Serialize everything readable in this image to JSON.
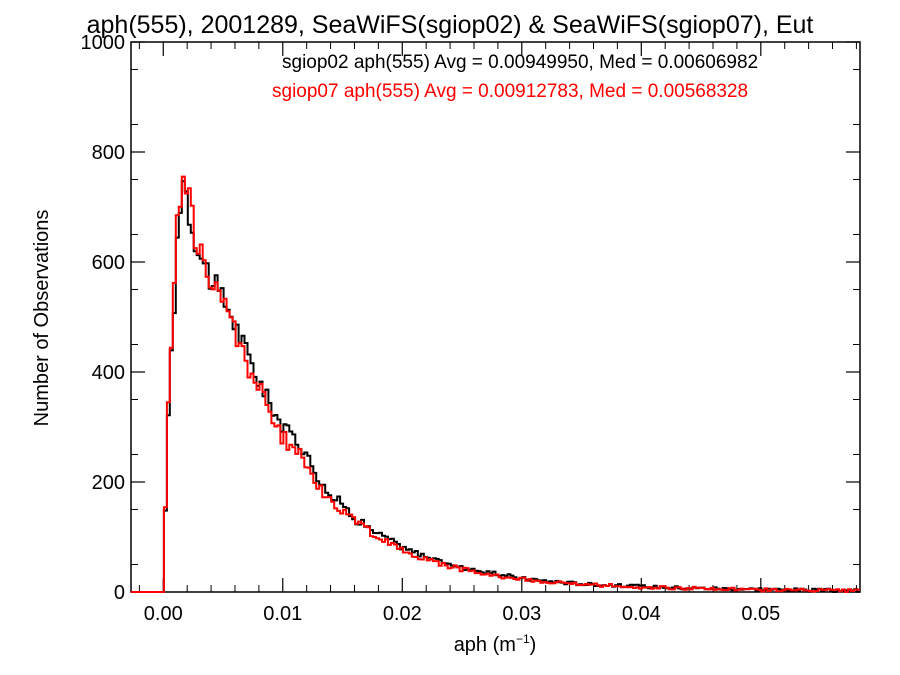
{
  "chart_data": {
    "type": "histogram",
    "title": "aph(555), 2001289, SeaWiFS(sgiop02) & SeaWiFS(sgiop07), Eut",
    "xlabel_base": "aph (m",
    "xlabel_sup": "−1",
    "xlabel_end": ")",
    "ylabel": "Number of Observations",
    "xlim": [
      -0.0027,
      0.0583
    ],
    "ylim": [
      0,
      1000
    ],
    "x_ticks": [
      "0.00",
      "0.01",
      "0.02",
      "0.03",
      "0.04",
      "0.05"
    ],
    "x_tick_values": [
      0.0,
      0.01,
      0.02,
      0.03,
      0.04,
      0.05
    ],
    "y_ticks": [
      "0",
      "200",
      "400",
      "600",
      "800",
      "1000"
    ],
    "y_tick_values": [
      0,
      200,
      400,
      600,
      800,
      1000
    ],
    "grid": false,
    "bin_width": 0.00025,
    "series": [
      {
        "name": "sgiop02",
        "color": "#000000",
        "stats_label": "sgiop02 aph(555) Avg = 0.00949950, Med = 0.00606982",
        "points": [
          [
            -0.0027,
            0
          ],
          [
            0.0,
            0
          ],
          [
            0.0002,
            160
          ],
          [
            0.0005,
            395
          ],
          [
            0.0008,
            445
          ],
          [
            0.001,
            555
          ],
          [
            0.0012,
            650
          ],
          [
            0.0015,
            735
          ],
          [
            0.0017,
            760
          ],
          [
            0.002,
            720
          ],
          [
            0.0022,
            690
          ],
          [
            0.0025,
            660
          ],
          [
            0.003,
            625
          ],
          [
            0.0035,
            590
          ],
          [
            0.004,
            575
          ],
          [
            0.0045,
            545
          ],
          [
            0.005,
            530
          ],
          [
            0.0055,
            515
          ],
          [
            0.006,
            490
          ],
          [
            0.0065,
            460
          ],
          [
            0.007,
            430
          ],
          [
            0.0075,
            410
          ],
          [
            0.008,
            385
          ],
          [
            0.0085,
            360
          ],
          [
            0.009,
            340
          ],
          [
            0.0095,
            320
          ],
          [
            0.01,
            300
          ],
          [
            0.011,
            280
          ],
          [
            0.012,
            250
          ],
          [
            0.0125,
            230
          ],
          [
            0.013,
            210
          ],
          [
            0.0135,
            190
          ],
          [
            0.014,
            175
          ],
          [
            0.015,
            160
          ],
          [
            0.016,
            135
          ],
          [
            0.017,
            120
          ],
          [
            0.018,
            105
          ],
          [
            0.019,
            95
          ],
          [
            0.02,
            80
          ],
          [
            0.022,
            65
          ],
          [
            0.024,
            50
          ],
          [
            0.026,
            40
          ],
          [
            0.028,
            32
          ],
          [
            0.03,
            25
          ],
          [
            0.032,
            20
          ],
          [
            0.035,
            15
          ],
          [
            0.038,
            12
          ],
          [
            0.04,
            10
          ],
          [
            0.045,
            7
          ],
          [
            0.05,
            5
          ],
          [
            0.055,
            3
          ],
          [
            0.0583,
            2
          ]
        ]
      },
      {
        "name": "sgiop07",
        "color": "#ff0000",
        "stats_label": "sgiop07 aph(555) Avg = 0.00912783, Med = 0.00568328",
        "points": [
          [
            -0.0027,
            0
          ],
          [
            0.0,
            0
          ],
          [
            0.0002,
            170
          ],
          [
            0.0005,
            410
          ],
          [
            0.0008,
            470
          ],
          [
            0.001,
            590
          ],
          [
            0.0012,
            680
          ],
          [
            0.0015,
            750
          ],
          [
            0.0017,
            770
          ],
          [
            0.002,
            745
          ],
          [
            0.0022,
            705
          ],
          [
            0.0025,
            670
          ],
          [
            0.003,
            630
          ],
          [
            0.0035,
            585
          ],
          [
            0.004,
            565
          ],
          [
            0.0045,
            540
          ],
          [
            0.005,
            520
          ],
          [
            0.0055,
            505
          ],
          [
            0.006,
            480
          ],
          [
            0.0065,
            445
          ],
          [
            0.007,
            415
          ],
          [
            0.0075,
            395
          ],
          [
            0.008,
            370
          ],
          [
            0.0085,
            345
          ],
          [
            0.009,
            320
          ],
          [
            0.0095,
            300
          ],
          [
            0.01,
            280
          ],
          [
            0.011,
            260
          ],
          [
            0.012,
            230
          ],
          [
            0.0125,
            210
          ],
          [
            0.013,
            195
          ],
          [
            0.0135,
            180
          ],
          [
            0.014,
            165
          ],
          [
            0.015,
            150
          ],
          [
            0.016,
            130
          ],
          [
            0.017,
            115
          ],
          [
            0.018,
            100
          ],
          [
            0.019,
            88
          ],
          [
            0.02,
            75
          ],
          [
            0.022,
            60
          ],
          [
            0.024,
            47
          ],
          [
            0.026,
            37
          ],
          [
            0.028,
            30
          ],
          [
            0.03,
            23
          ],
          [
            0.032,
            18
          ],
          [
            0.035,
            14
          ],
          [
            0.038,
            11
          ],
          [
            0.04,
            9
          ],
          [
            0.045,
            6
          ],
          [
            0.05,
            4
          ],
          [
            0.055,
            3
          ],
          [
            0.0583,
            2
          ]
        ]
      }
    ]
  }
}
